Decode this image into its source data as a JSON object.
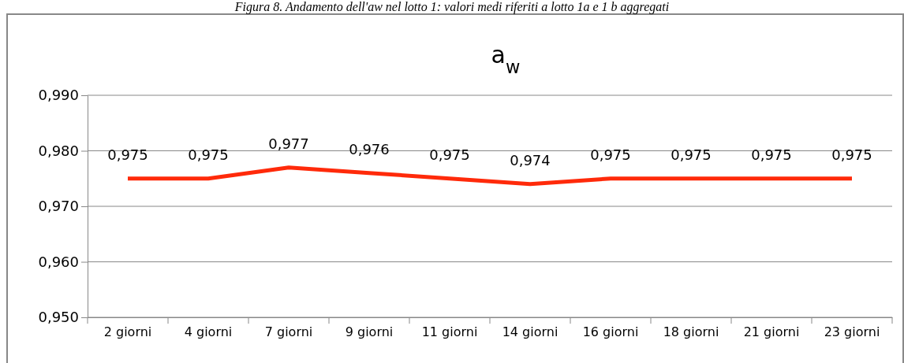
{
  "chart_data": {
    "type": "line",
    "title": "a$_{w}$",
    "annotations": [
      "Figura 8. Andamento dell'aw nel lotto 1: valori medi riferiti a lotto 1a e 1 b aggregati"
    ],
    "categories": [
      "2 giorni",
      "4 giorni",
      "7 giorni",
      "9 giorni",
      "11 giorni",
      "14 giorni",
      "16 giorni",
      "18 giorni",
      "21 giorni",
      "23 giorni"
    ],
    "series": [
      {
        "color": "#ff2a0a",
        "values": [
          0.975,
          0.975,
          0.977,
          0.976,
          0.975,
          0.974,
          0.975,
          0.975,
          0.975,
          0.975
        ]
      }
    ],
    "value_labels": [
      "0,975",
      "0,975",
      "0,977",
      "0,976",
      "0,975",
      "0,974",
      "0,975",
      "0,975",
      "0,975",
      "0,975"
    ],
    "ylim": [
      0.95,
      0.99
    ],
    "yticks": [
      {
        "value": 0.95,
        "label": "0,950"
      },
      {
        "value": 0.96,
        "label": "0,960"
      },
      {
        "value": 0.97,
        "label": "0,970"
      },
      {
        "value": 0.98,
        "label": "0,980"
      },
      {
        "value": 0.99,
        "label": "0,990"
      }
    ],
    "grid": "y",
    "marker": "none",
    "line_style": "solid"
  }
}
